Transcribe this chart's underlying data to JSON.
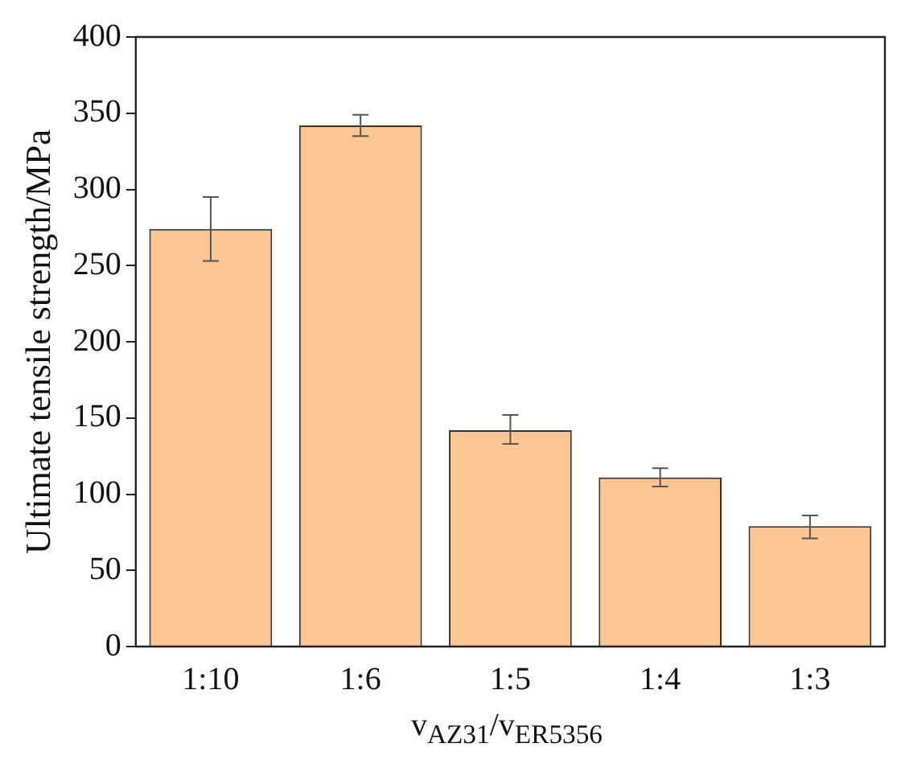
{
  "chart_data": {
    "type": "bar",
    "xlabel": "v$_{AZ31}$/v$_{ER5356}$",
    "ylabel": "Ultimate tensile strength/MPa",
    "categories": [
      "1:10",
      "1:6",
      "1:5",
      "1:4",
      "1:3"
    ],
    "values": [
      274,
      342,
      142,
      111,
      79
    ],
    "errors": [
      [
        253,
        295
      ],
      [
        335,
        349
      ],
      [
        133,
        152
      ],
      [
        105,
        117
      ],
      [
        71,
        86
      ]
    ],
    "color": "#fbc594",
    "ylim": [
      0,
      400
    ],
    "yticks": [
      0,
      50,
      100,
      150,
      200,
      250,
      300,
      350,
      400
    ],
    "grid": false,
    "legend": false
  }
}
